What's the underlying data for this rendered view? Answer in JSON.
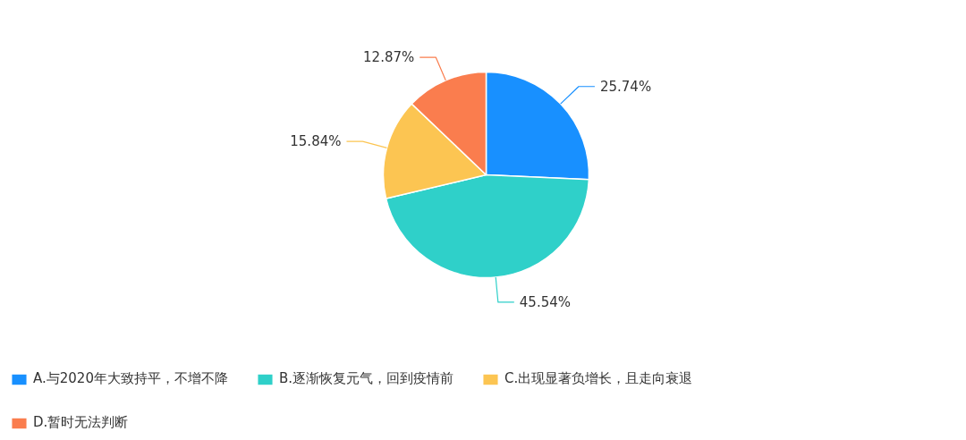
{
  "chart_data": {
    "type": "pie",
    "categories": [
      "A.与2020年大致持平，不增不降",
      "B.逐渐恢复元气，回到疫情前",
      "C.出现显著负增长，且走向衰退",
      "D.暂时无法判断"
    ],
    "values": [
      25.74,
      45.54,
      15.84,
      12.87
    ],
    "colors": [
      "#1890ff",
      "#2fd0c9",
      "#fcc552",
      "#fa7d4e"
    ],
    "value_labels": [
      "25.74%",
      "45.54%",
      "15.84%",
      "12.87%"
    ],
    "legend": "bottom"
  }
}
